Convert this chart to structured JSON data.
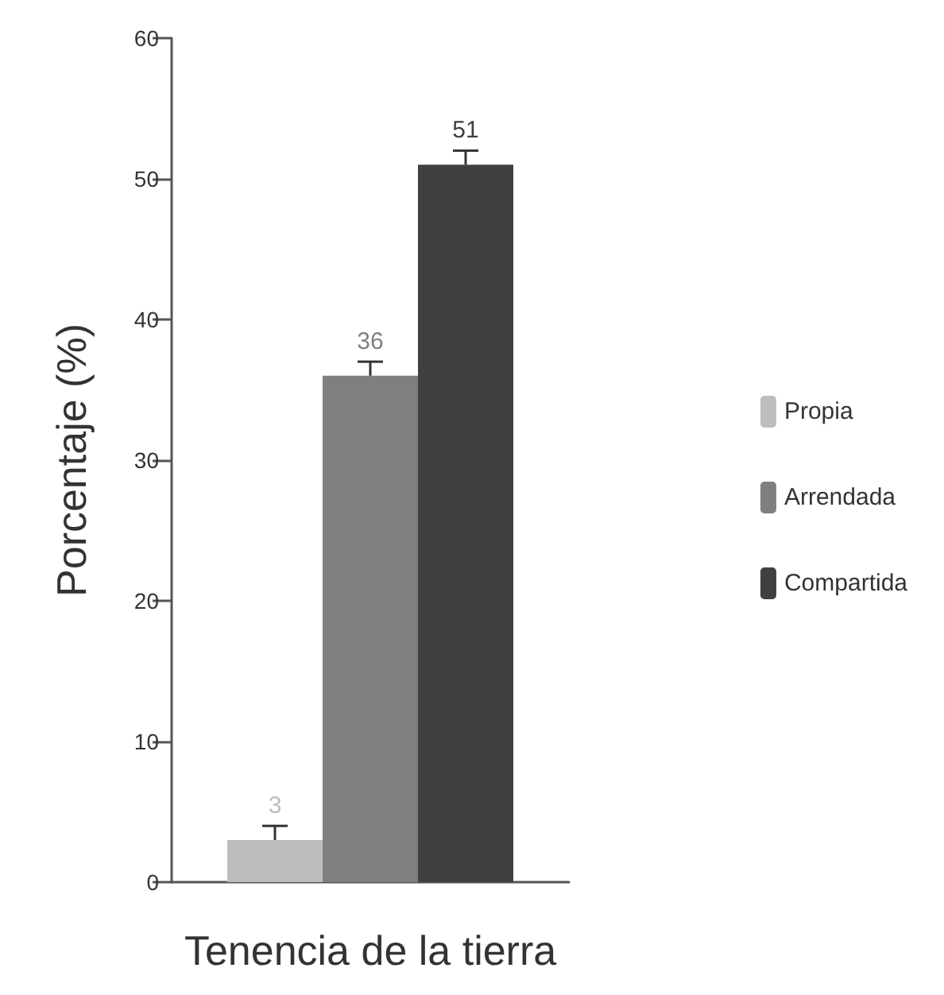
{
  "chart_data": {
    "type": "bar",
    "xlabel": "Tenencia de la tierra",
    "ylabel": "Porcentaje (%)",
    "categories": [
      null
    ],
    "series": [
      {
        "name": "Propia",
        "color": "#bdbdbd",
        "values": [
          3
        ],
        "errors": [
          [
            3,
            4
          ]
        ]
      },
      {
        "name": "Arrendada",
        "color": "#7f7f7f",
        "values": [
          36
        ],
        "errors": [
          [
            36,
            37
          ]
        ]
      },
      {
        "name": "Compartida",
        "color": "#404040",
        "values": [
          51
        ],
        "errors": [
          [
            51,
            52
          ]
        ]
      }
    ],
    "ylim": [
      0,
      60
    ],
    "yticks": [
      0,
      10,
      20,
      30,
      40,
      50,
      60
    ],
    "data_labels": true,
    "legend": "right",
    "grid": false
  }
}
